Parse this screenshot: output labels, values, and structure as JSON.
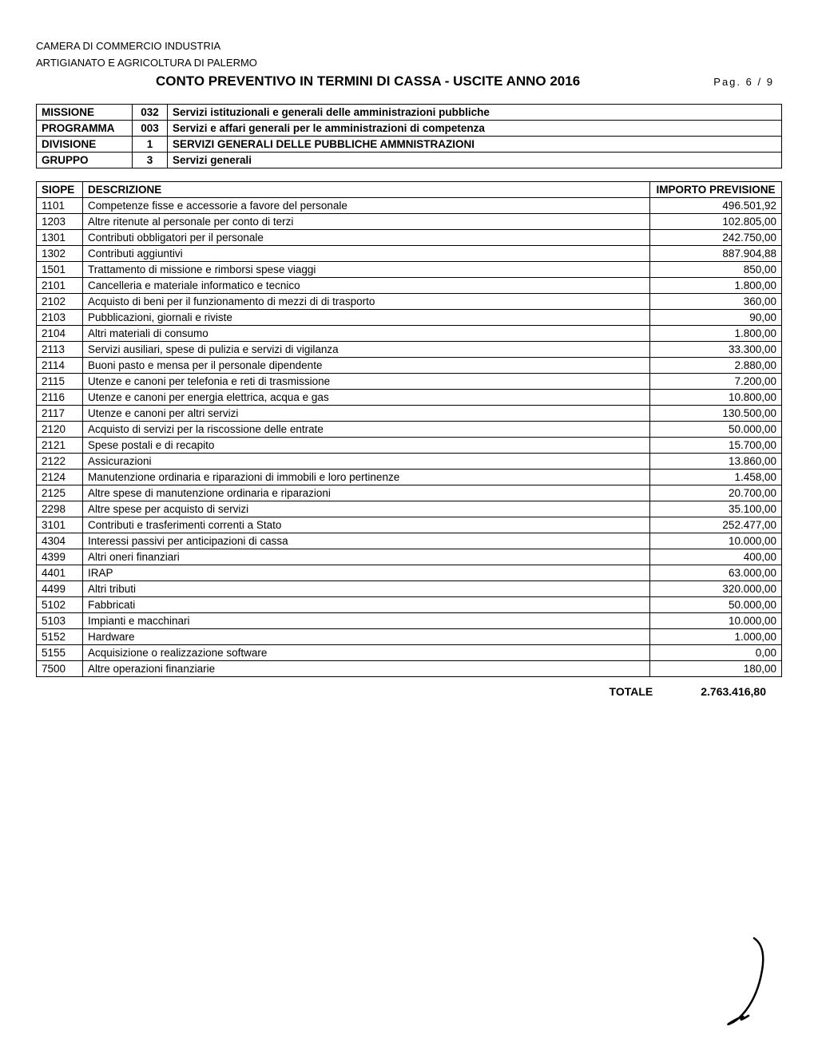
{
  "header": {
    "org_line1": "CAMERA DI COMMERCIO INDUSTRIA",
    "org_line2": "ARTIGIANATO E AGRICOLTURA DI PALERMO",
    "title": "CONTO PREVENTIVO IN TERMINI DI CASSA - USCITE ANNO 2016",
    "page_label": "Pag.",
    "page_current": "6",
    "page_sep": "/",
    "page_total": "9"
  },
  "meta": {
    "rows": [
      {
        "label": "MISSIONE",
        "code": "032",
        "desc": "Servizi istituzionali e generali delle amministrazioni pubbliche"
      },
      {
        "label": "PROGRAMMA",
        "code": "003",
        "desc": "Servizi e affari generali per le amministrazioni di competenza"
      },
      {
        "label": "DIVISIONE",
        "code": "1",
        "desc": "SERVIZI GENERALI DELLE PUBBLICHE AMMNISTRAZIONI"
      },
      {
        "label": "GRUPPO",
        "code": "3",
        "desc": "Servizi generali"
      }
    ]
  },
  "table": {
    "columns": {
      "siope": "SIOPE",
      "descrizione": "DESCRIZIONE",
      "importo": "IMPORTO PREVISIONE"
    },
    "rows": [
      {
        "code": "1101",
        "desc": "Competenze fisse e accessorie a favore del personale",
        "amount": "496.501,92"
      },
      {
        "code": "1203",
        "desc": "Altre ritenute al personale per conto di terzi",
        "amount": "102.805,00"
      },
      {
        "code": "1301",
        "desc": "Contributi obbligatori per il personale",
        "amount": "242.750,00"
      },
      {
        "code": "1302",
        "desc": "Contributi aggiuntivi",
        "amount": "887.904,88"
      },
      {
        "code": "1501",
        "desc": "Trattamento di missione e rimborsi spese viaggi",
        "amount": "850,00"
      },
      {
        "code": "2101",
        "desc": "Cancelleria e materiale informatico e tecnico",
        "amount": "1.800,00"
      },
      {
        "code": "2102",
        "desc": "Acquisto di beni per il funzionamento di mezzi di di trasporto",
        "amount": "360,00"
      },
      {
        "code": "2103",
        "desc": "Pubblicazioni, giornali e riviste",
        "amount": "90,00"
      },
      {
        "code": "2104",
        "desc": "Altri materiali di consumo",
        "amount": "1.800,00"
      },
      {
        "code": "2113",
        "desc": "Servizi ausiliari, spese di pulizia e servizi di vigilanza",
        "amount": "33.300,00"
      },
      {
        "code": "2114",
        "desc": "Buoni pasto e mensa per il personale dipendente",
        "amount": "2.880,00"
      },
      {
        "code": "2115",
        "desc": "Utenze e canoni per telefonia e reti di trasmissione",
        "amount": "7.200,00"
      },
      {
        "code": "2116",
        "desc": "Utenze e canoni per energia elettrica, acqua e gas",
        "amount": "10.800,00"
      },
      {
        "code": "2117",
        "desc": "Utenze e canoni per altri servizi",
        "amount": "130.500,00"
      },
      {
        "code": "2120",
        "desc": "Acquisto di servizi per la riscossione delle entrate",
        "amount": "50.000,00"
      },
      {
        "code": "2121",
        "desc": "Spese postali e di recapito",
        "amount": "15.700,00"
      },
      {
        "code": "2122",
        "desc": "Assicurazioni",
        "amount": "13.860,00"
      },
      {
        "code": "2124",
        "desc": "Manutenzione ordinaria e riparazioni di immobili e loro pertinenze",
        "amount": "1.458,00"
      },
      {
        "code": "2125",
        "desc": "Altre spese di manutenzione ordinaria e riparazioni",
        "amount": "20.700,00"
      },
      {
        "code": "2298",
        "desc": "Altre spese per acquisto di servizi",
        "amount": "35.100,00"
      },
      {
        "code": "3101",
        "desc": "Contributi e trasferimenti correnti a Stato",
        "amount": "252.477,00"
      },
      {
        "code": "4304",
        "desc": "Interessi passivi per anticipazioni di cassa",
        "amount": "10.000,00"
      },
      {
        "code": "4399",
        "desc": "Altri oneri finanziari",
        "amount": "400,00"
      },
      {
        "code": "4401",
        "desc": "IRAP",
        "amount": "63.000,00"
      },
      {
        "code": "4499",
        "desc": "Altri tributi",
        "amount": "320.000,00"
      },
      {
        "code": "5102",
        "desc": "Fabbricati",
        "amount": "50.000,00"
      },
      {
        "code": "5103",
        "desc": "Impianti e macchinari",
        "amount": "10.000,00"
      },
      {
        "code": "5152",
        "desc": "Hardware",
        "amount": "1.000,00"
      },
      {
        "code": "5155",
        "desc": "Acquisizione o realizzazione software",
        "amount": "0,00"
      },
      {
        "code": "7500",
        "desc": "Altre operazioni finanziarie",
        "amount": "180,00"
      }
    ]
  },
  "total": {
    "label": "TOTALE",
    "value": "2.763.416,80"
  }
}
